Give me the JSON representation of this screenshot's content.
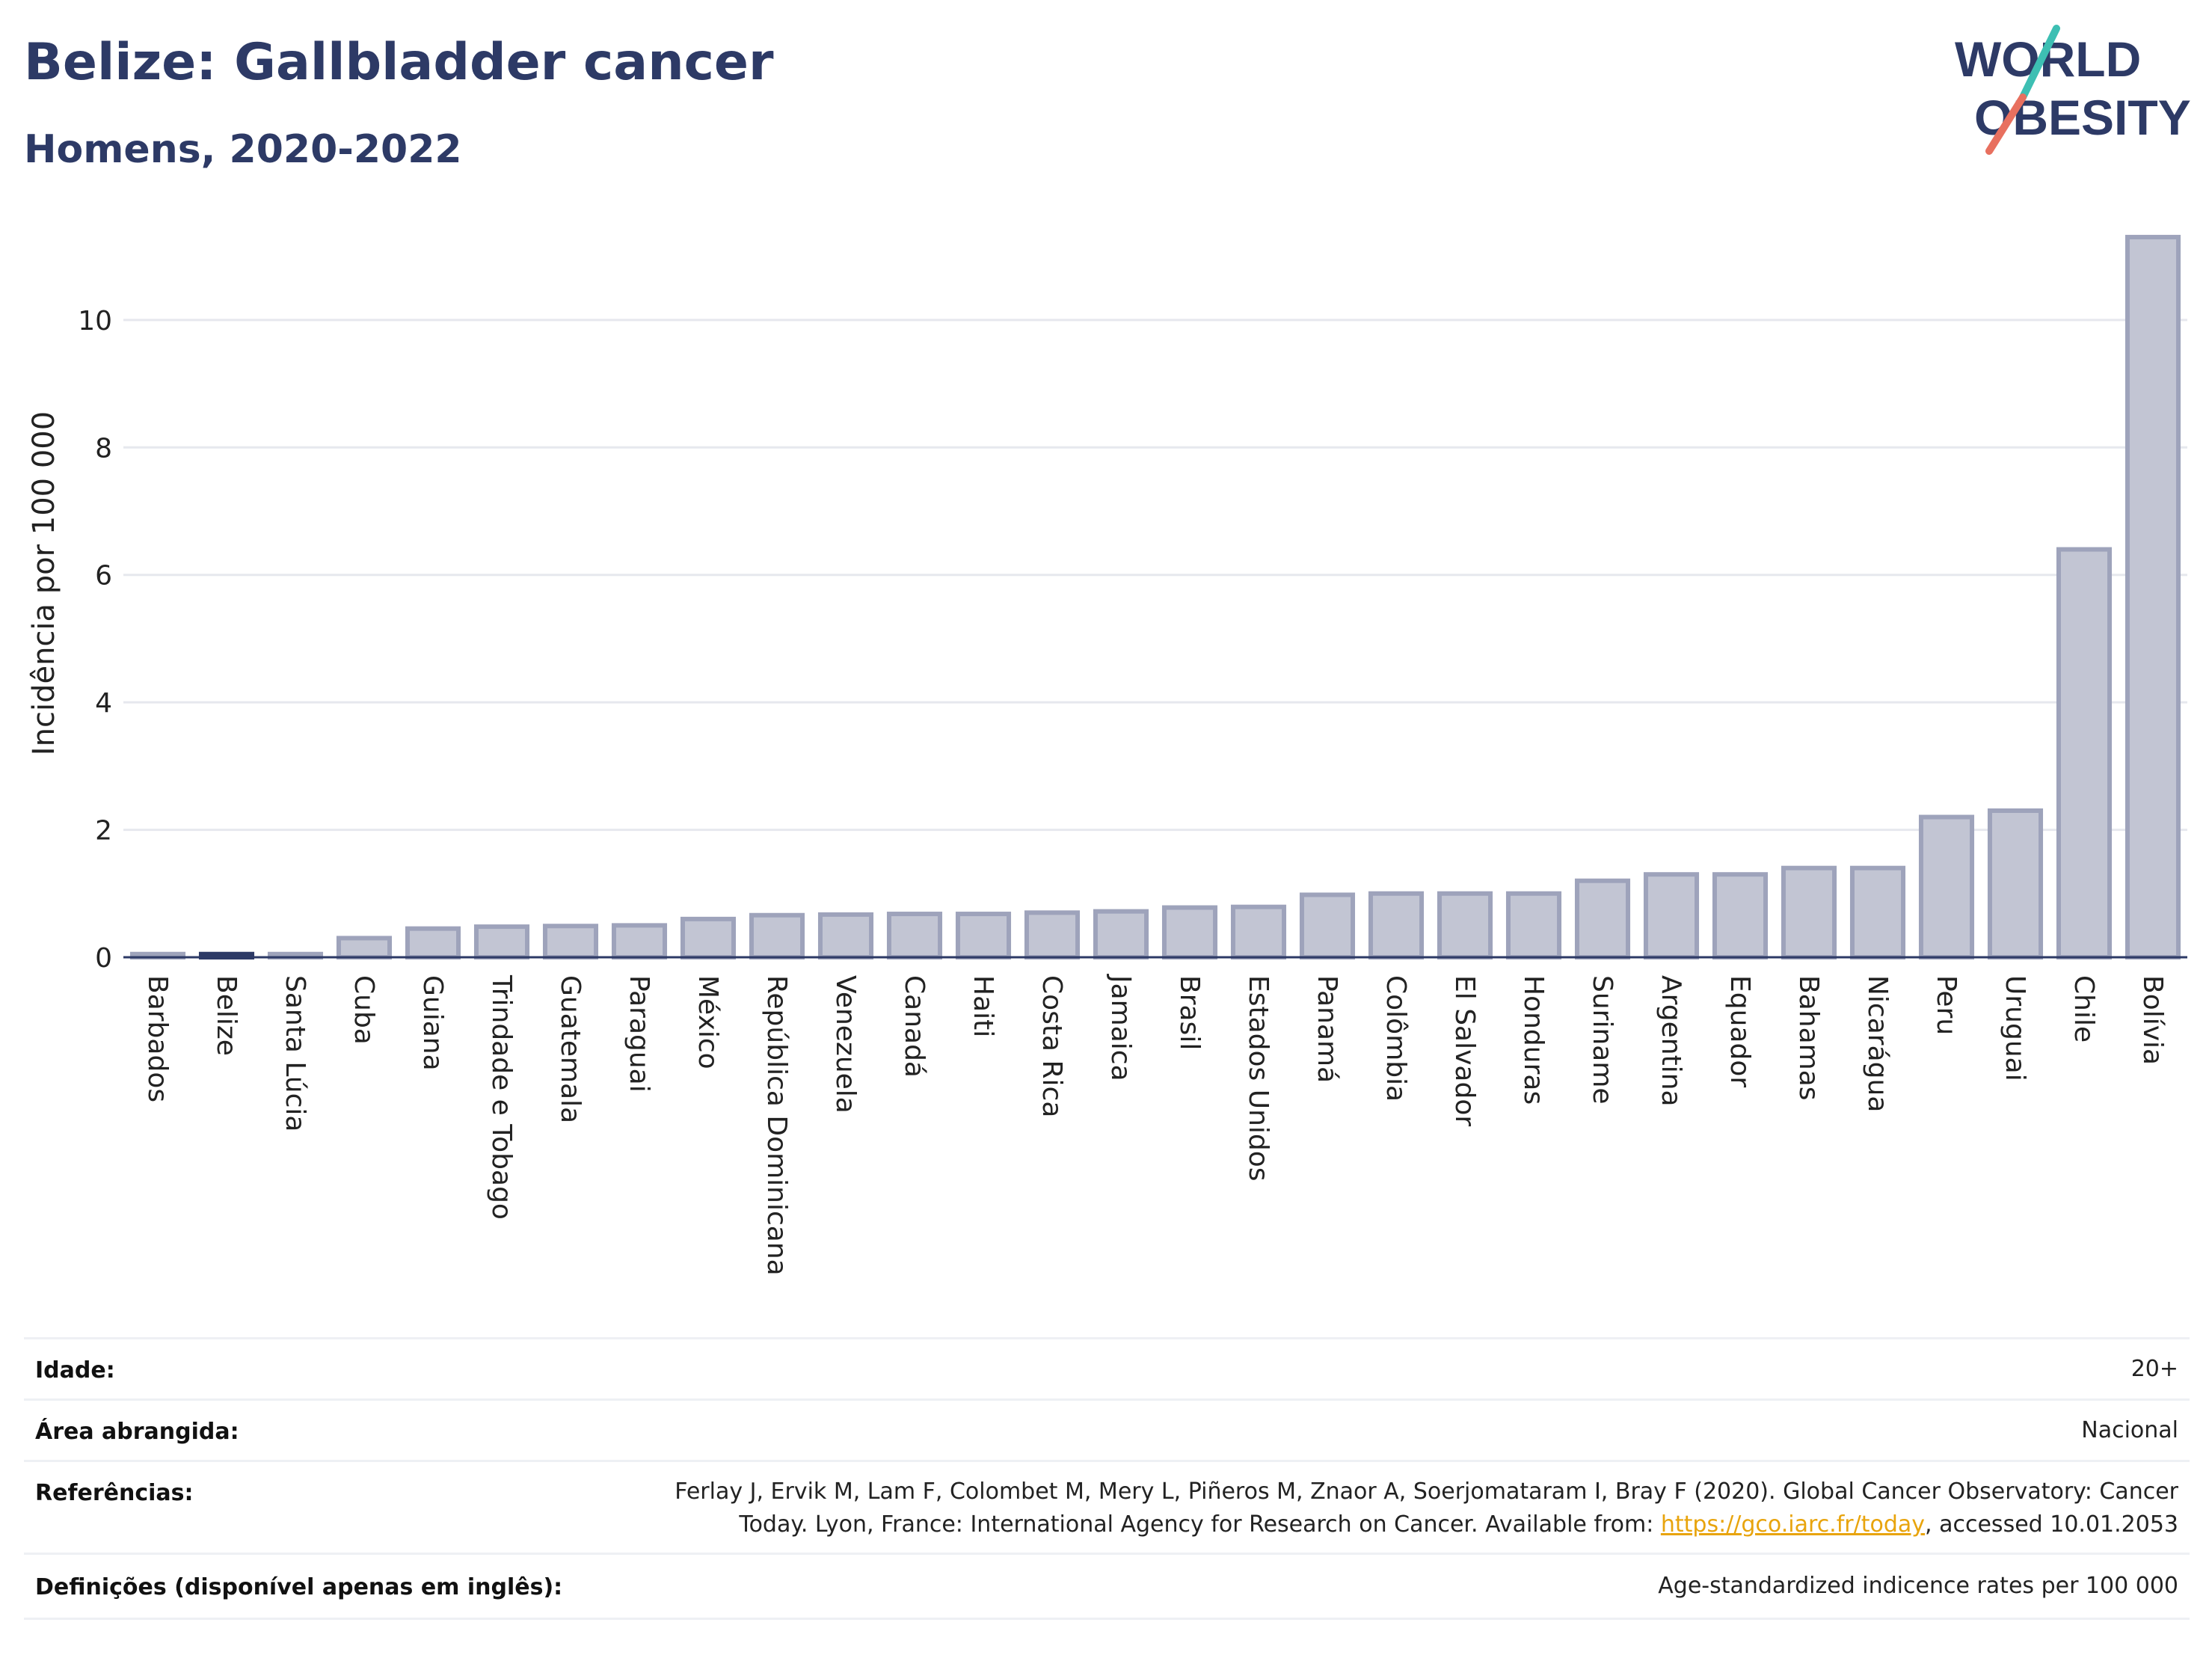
{
  "header": {
    "title": "Belize: Gallbladder cancer",
    "subtitle": "Homens, 2020-2022"
  },
  "logo": {
    "line1": "WORLD",
    "line2": "OBESITY"
  },
  "chart_data": {
    "type": "bar",
    "ylabel": "Incidência por 100 000",
    "xlabel": "",
    "ylim": [
      0,
      11.5
    ],
    "yticks": [
      0,
      2,
      4,
      6,
      8,
      10
    ],
    "grid": true,
    "highlight": "Belize",
    "categories": [
      "Barbados",
      "Belize",
      "Santa Lúcia",
      "Cuba",
      "Guiana",
      "Trindade e Tobago",
      "Guatemala",
      "Paraguai",
      "México",
      "República Dominicana",
      "Venezuela",
      "Canadá",
      "Haiti",
      "Costa Rica",
      "Jamaica",
      "Brasil",
      "Estados Unidos",
      "Panamá",
      "Colômbia",
      "El Salvador",
      "Honduras",
      "Suriname",
      "Argentina",
      "Equador",
      "Bahamas",
      "Nicarágua",
      "Peru",
      "Uruguai",
      "Chile",
      "Bolívia"
    ],
    "values": [
      0.05,
      0.05,
      0.05,
      0.3,
      0.45,
      0.48,
      0.49,
      0.5,
      0.6,
      0.66,
      0.67,
      0.68,
      0.68,
      0.7,
      0.72,
      0.78,
      0.79,
      0.98,
      1.0,
      1.0,
      1.0,
      1.2,
      1.3,
      1.3,
      1.4,
      1.4,
      2.2,
      2.3,
      6.4,
      11.3
    ],
    "colors": {
      "bar": "#c2c5d3",
      "bar_edge": "#9ea3bb",
      "highlight": "#2d3a66"
    }
  },
  "meta": {
    "rows": [
      {
        "label": "Idade:",
        "value": "20+"
      },
      {
        "label": "Área abrangida:",
        "value": "Nacional"
      },
      {
        "label": "Referências:",
        "value_line1": "Ferlay J, Ervik M, Lam F, Colombet M, Mery L, Piñeros M, Znaor A, Soerjomataram I, Bray F (2020). Global Cancer Observatory: Cancer",
        "value_line2_pre": "Today. Lyon, France: International Agency for Research on Cancer. Available from: ",
        "link": "https://gco.iarc.fr/today",
        "value_line2_post": ", accessed 10.01.2053"
      },
      {
        "label": "Definições (disponível apenas em inglês):",
        "value": "Age-standardized indicence rates per 100 000"
      }
    ]
  }
}
